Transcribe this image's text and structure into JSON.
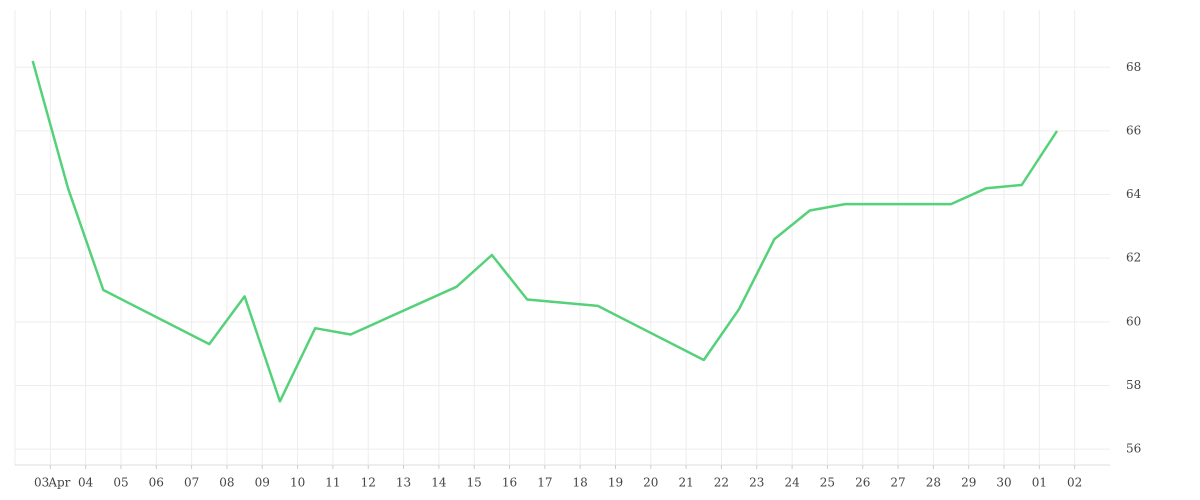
{
  "chart_data": {
    "type": "line",
    "x": [
      "04-02",
      "04-03",
      "04-04",
      "04-07",
      "04-08",
      "04-09",
      "04-10",
      "04-11",
      "04-14",
      "04-15",
      "04-16",
      "04-18",
      "04-21",
      "04-22",
      "04-23",
      "04-24",
      "04-25",
      "04-28",
      "04-29",
      "04-30",
      "05-01"
    ],
    "series": [
      {
        "color": "#55d17a",
        "values": [
          68.2,
          64.2,
          61.0,
          59.3,
          60.8,
          57.5,
          59.8,
          59.6,
          61.1,
          62.1,
          60.7,
          60.5,
          58.8,
          60.4,
          62.6,
          63.5,
          63.7,
          63.7,
          64.2,
          64.3,
          66.0
        ]
      }
    ],
    "xlim": [
      "04-02",
      "05-03"
    ],
    "xticks": [
      {
        "value": "04-03",
        "label": "03"
      },
      {
        "value": "04-04",
        "label": "04"
      },
      {
        "value": "04-05",
        "label": "05"
      },
      {
        "value": "04-06",
        "label": "06"
      },
      {
        "value": "04-07",
        "label": "07"
      },
      {
        "value": "04-08",
        "label": "08"
      },
      {
        "value": "04-09",
        "label": "09"
      },
      {
        "value": "04-10",
        "label": "10"
      },
      {
        "value": "04-11",
        "label": "11"
      },
      {
        "value": "04-12",
        "label": "12"
      },
      {
        "value": "04-13",
        "label": "13"
      },
      {
        "value": "04-14",
        "label": "14"
      },
      {
        "value": "04-15",
        "label": "15"
      },
      {
        "value": "04-16",
        "label": "16"
      },
      {
        "value": "04-17",
        "label": "17"
      },
      {
        "value": "04-18",
        "label": "18"
      },
      {
        "value": "04-19",
        "label": "19"
      },
      {
        "value": "04-20",
        "label": "20"
      },
      {
        "value": "04-21",
        "label": "21"
      },
      {
        "value": "04-22",
        "label": "22"
      },
      {
        "value": "04-23",
        "label": "23"
      },
      {
        "value": "04-24",
        "label": "24"
      },
      {
        "value": "04-25",
        "label": "25"
      },
      {
        "value": "04-26",
        "label": "26"
      },
      {
        "value": "04-27",
        "label": "27"
      },
      {
        "value": "04-28",
        "label": "28"
      },
      {
        "value": "04-29",
        "label": "29"
      },
      {
        "value": "04-30",
        "label": "30"
      },
      {
        "value": "05-01",
        "label": "01"
      },
      {
        "value": "05-02",
        "label": "02"
      }
    ],
    "month_label": "Apr",
    "ylim": [
      55.5,
      69.8
    ],
    "yticks": [
      56,
      58,
      60,
      62,
      64,
      66,
      68
    ],
    "y_axis_side": "right",
    "grid": true
  }
}
